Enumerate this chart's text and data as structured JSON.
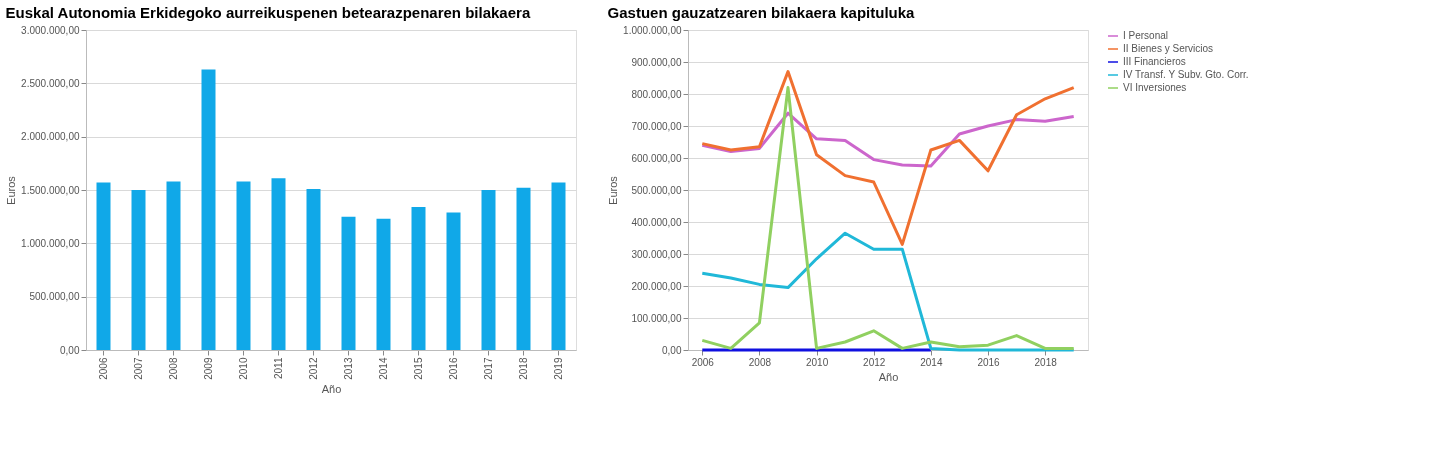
{
  "chart_data": [
    {
      "type": "bar",
      "title": "Euskal Autonomia Erkidegoko aurreikuspenen betearazpenaren bilakaera",
      "xlabel": "Año",
      "ylabel": "Euros",
      "categories": [
        "2006",
        "2007",
        "2008",
        "2009",
        "2010",
        "2011",
        "2012",
        "2013",
        "2014",
        "2015",
        "2016",
        "2017",
        "2018",
        "2019"
      ],
      "values": [
        1570000,
        1500000,
        1580000,
        2630000,
        1580000,
        1610000,
        1510000,
        1250000,
        1230000,
        1340000,
        1290000,
        1500000,
        1520000,
        1570000
      ],
      "color": "#10a8e8",
      "ylim": [
        0,
        3000000
      ],
      "yticks": [
        {
          "value": 0,
          "label": "0,00"
        },
        {
          "value": 500000,
          "label": "500.000,00"
        },
        {
          "value": 1000000,
          "label": "1.000.000,00"
        },
        {
          "value": 1500000,
          "label": "1.500.000,00"
        },
        {
          "value": 2000000,
          "label": "2.000.000,00"
        },
        {
          "value": 2500000,
          "label": "2.500.000,00"
        },
        {
          "value": 3000000,
          "label": "3.000.000,00"
        }
      ],
      "grid": "y"
    },
    {
      "type": "line",
      "title": "Gastuen gauzatzearen bilakaera kapituluka",
      "xlabel": "Año",
      "ylabel": "Euros",
      "x": [
        2006,
        2007,
        2008,
        2009,
        2010,
        2011,
        2012,
        2013,
        2014,
        2015,
        2016,
        2017,
        2018,
        2019
      ],
      "series": [
        {
          "name": "I Personal",
          "color": "#cc66cc",
          "values": [
            640000,
            620000,
            630000,
            740000,
            660000,
            655000,
            595000,
            578000,
            575000,
            675000,
            700000,
            720000,
            715000,
            730000
          ]
        },
        {
          "name": "II Bienes y Servicios",
          "color": "#f07030",
          "values": [
            645000,
            625000,
            635000,
            870000,
            610000,
            545000,
            525000,
            330000,
            625000,
            655000,
            560000,
            735000,
            785000,
            820000
          ]
        },
        {
          "name": "III Financieros",
          "color": "#1010e0",
          "values": [
            0,
            0,
            0,
            0,
            0,
            0,
            0,
            0,
            0,
            null,
            null,
            null,
            null,
            null
          ]
        },
        {
          "name": "IV Transf. Y Subv. Gto. Corr.",
          "color": "#20b8d8",
          "values": [
            240000,
            225000,
            205000,
            195000,
            285000,
            365000,
            315000,
            315000,
            5000,
            0,
            0,
            0,
            0,
            0
          ]
        },
        {
          "name": "VI Inversiones",
          "color": "#90d060",
          "values": [
            30000,
            5000,
            85000,
            820000,
            5000,
            25000,
            60000,
            5000,
            25000,
            10000,
            15000,
            45000,
            5000,
            5000
          ]
        }
      ],
      "xlim": [
        2005.5,
        2019.5
      ],
      "xticks": [
        2006,
        2008,
        2010,
        2012,
        2014,
        2016,
        2018
      ],
      "ylim": [
        0,
        1000000
      ],
      "yticks": [
        {
          "value": 0,
          "label": "0,00"
        },
        {
          "value": 100000,
          "label": "100.000,00"
        },
        {
          "value": 200000,
          "label": "200.000,00"
        },
        {
          "value": 300000,
          "label": "300.000,00"
        },
        {
          "value": 400000,
          "label": "400.000,00"
        },
        {
          "value": 500000,
          "label": "500.000,00"
        },
        {
          "value": 600000,
          "label": "600.000,00"
        },
        {
          "value": 700000,
          "label": "700.000,00"
        },
        {
          "value": 800000,
          "label": "800.000,00"
        },
        {
          "value": 900000,
          "label": "900.000,00"
        },
        {
          "value": 1000000,
          "label": "1.000.000,00"
        }
      ],
      "grid": "y",
      "legend": "right",
      "marker": "none",
      "line_style": "solid"
    }
  ]
}
